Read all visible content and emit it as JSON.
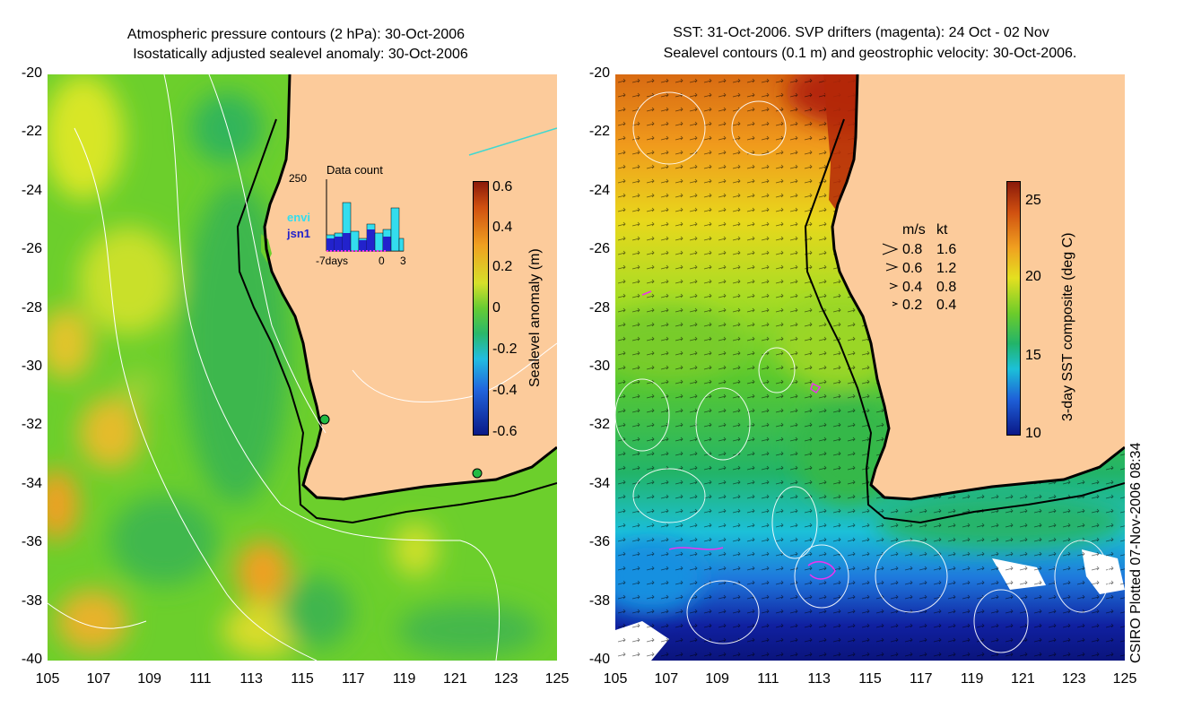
{
  "left_panel": {
    "title_line1": "Atmospheric pressure contours (2 hPa): 30-Oct-2006",
    "title_line2": "Isostatically adjusted sealevel anomaly: 30-Oct-2006",
    "colorbar_label": "Sealevel anomaly (m)",
    "colorbar_ticks": [
      "0.6",
      "0.4",
      "0.2",
      "0",
      "-0.2",
      "-0.4",
      "-0.6"
    ],
    "inset": {
      "title": "Data count",
      "y_max_label": "250",
      "x_labels": [
        "-7days",
        "0",
        "3"
      ],
      "legend": [
        {
          "name": "envi",
          "color": "#33ddee"
        },
        {
          "name": "jsn1",
          "color": "#2222cc"
        }
      ]
    }
  },
  "right_panel": {
    "title_line1": "SST: 31-Oct-2006. SVP drifters (magenta): 24 Oct - 02 Nov",
    "title_line2": "Sealevel contours (0.1 m) and geostrophic velocity: 30-Oct-2006.",
    "colorbar_label": "3-day SST composite (deg C)",
    "colorbar_ticks": [
      "25",
      "20",
      "15",
      "10"
    ],
    "velocity_legend": {
      "header_ms": "m/s",
      "header_kt": "kt",
      "rows": [
        {
          "ms": "0.8",
          "kt": "1.6"
        },
        {
          "ms": "0.6",
          "kt": "1.2"
        },
        {
          "ms": "0.4",
          "kt": "0.8"
        },
        {
          "ms": "0.2",
          "kt": "0.4"
        }
      ]
    }
  },
  "axes": {
    "lat_labels": [
      "-20",
      "-22",
      "-24",
      "-26",
      "-28",
      "-30",
      "-32",
      "-34",
      "-36",
      "-38",
      "-40"
    ],
    "lon_labels": [
      "105",
      "107",
      "109",
      "111",
      "113",
      "115",
      "117",
      "119",
      "121",
      "123",
      "125"
    ]
  },
  "credit": "CSIRO Plotted 07-Nov-2006 08:34",
  "colors": {
    "land": "#fccb9b",
    "ocean_left": "#6cd22a",
    "coast_line": "#000000",
    "contour": "#ffffff",
    "drifter": "#ee33ee"
  }
}
